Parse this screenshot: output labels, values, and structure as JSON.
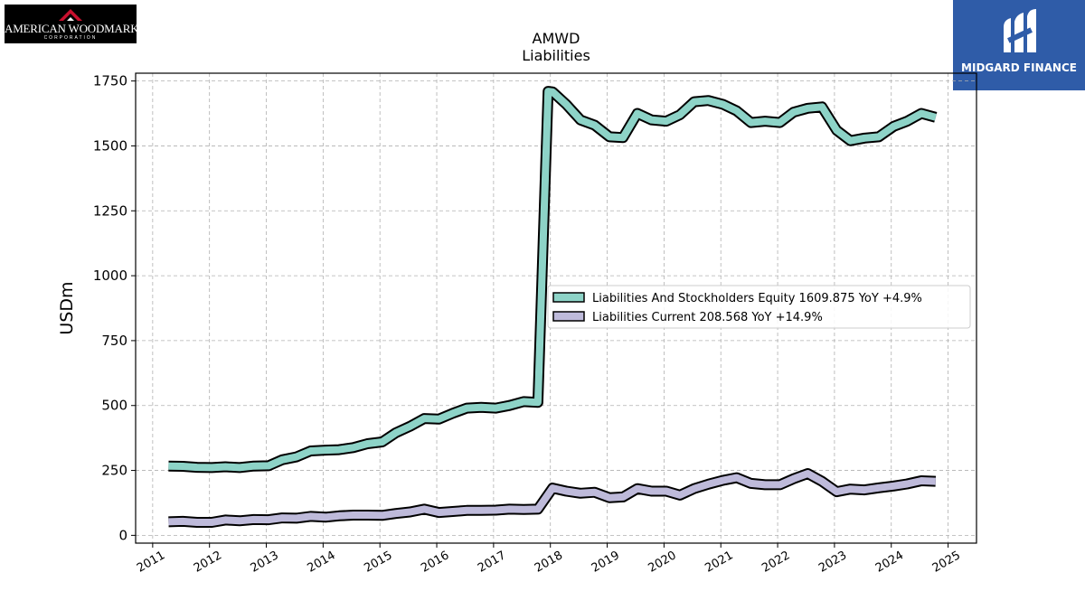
{
  "logos": {
    "left": {
      "wordmark": "AMERICAN WOODMARK",
      "subtext": "CORPORATION"
    },
    "right": {
      "wordmark": "MIDGARD FINANCE"
    }
  },
  "chart_data": {
    "type": "line",
    "title": "AMWD",
    "subtitle": "Liabilities",
    "ylabel": "USDm",
    "xlabel": "",
    "ylim": [
      -30,
      1780
    ],
    "xlim": [
      2010.7,
      2025.5
    ],
    "yticks": [
      0,
      250,
      500,
      750,
      1000,
      1250,
      1500,
      1750
    ],
    "xticks": [
      "2011",
      "2012",
      "2013",
      "2014",
      "2015",
      "2016",
      "2017",
      "2018",
      "2019",
      "2020",
      "2021",
      "2022",
      "2023",
      "2024",
      "2025"
    ],
    "grid": true,
    "legend_position": "center-right",
    "series": [
      {
        "name": "Liabilities And Stockholders Equity  1609.875 YoY +4.9%",
        "color": "#8dd3c7",
        "x": [
          2011.28,
          2011.53,
          2011.78,
          2012.04,
          2012.28,
          2012.53,
          2012.78,
          2013.04,
          2013.28,
          2013.53,
          2013.78,
          2014.04,
          2014.28,
          2014.53,
          2014.78,
          2015.04,
          2015.28,
          2015.53,
          2015.78,
          2016.04,
          2016.28,
          2016.53,
          2016.78,
          2017.04,
          2017.28,
          2017.53,
          2017.78,
          2017.96,
          2018.04,
          2018.28,
          2018.53,
          2018.78,
          2019.04,
          2019.28,
          2019.53,
          2019.78,
          2020.04,
          2020.28,
          2020.53,
          2020.78,
          2021.04,
          2021.28,
          2021.53,
          2021.78,
          2022.04,
          2022.28,
          2022.53,
          2022.78,
          2023.04,
          2023.28,
          2023.53,
          2023.78,
          2024.04,
          2024.28,
          2024.53,
          2024.78
        ],
        "values": [
          267,
          266,
          262,
          261,
          264,
          261,
          267,
          268,
          291,
          302,
          325,
          328,
          330,
          338,
          353,
          360,
          395,
          420,
          450,
          448,
          470,
          490,
          493,
          490,
          500,
          515,
          512,
          1710,
          1708,
          1660,
          1600,
          1580,
          1535,
          1532,
          1625,
          1600,
          1595,
          1620,
          1670,
          1675,
          1660,
          1635,
          1590,
          1595,
          1590,
          1630,
          1645,
          1650,
          1560,
          1520,
          1530,
          1535,
          1575,
          1595,
          1625,
          1610
        ]
      },
      {
        "name": "Liabilities Current  208.568 YoY +14.9%",
        "color": "#bebada",
        "x": [
          2011.28,
          2011.53,
          2011.78,
          2012.04,
          2012.28,
          2012.53,
          2012.78,
          2013.04,
          2013.28,
          2013.53,
          2013.78,
          2014.04,
          2014.28,
          2014.53,
          2014.78,
          2015.04,
          2015.28,
          2015.53,
          2015.78,
          2016.04,
          2016.28,
          2016.53,
          2016.78,
          2017.04,
          2017.28,
          2017.53,
          2017.78,
          2018.04,
          2018.28,
          2018.53,
          2018.78,
          2019.04,
          2019.28,
          2019.53,
          2019.78,
          2020.04,
          2020.28,
          2020.53,
          2020.78,
          2021.04,
          2021.28,
          2021.53,
          2021.78,
          2022.04,
          2022.28,
          2022.53,
          2022.78,
          2023.04,
          2023.28,
          2023.53,
          2023.78,
          2024.04,
          2024.28,
          2024.53,
          2024.78
        ],
        "values": [
          52,
          54,
          50,
          50,
          59,
          56,
          61,
          60,
          67,
          66,
          73,
          70,
          75,
          78,
          78,
          77,
          84,
          90,
          101,
          88,
          92,
          96,
          96,
          97,
          101,
          100,
          101,
          182,
          170,
          162,
          166,
          145,
          148,
          180,
          170,
          170,
          155,
          180,
          197,
          212,
          222,
          200,
          195,
          195,
          218,
          238,
          208,
          168,
          178,
          175,
          183,
          190,
          198,
          210,
          208
        ]
      }
    ]
  }
}
